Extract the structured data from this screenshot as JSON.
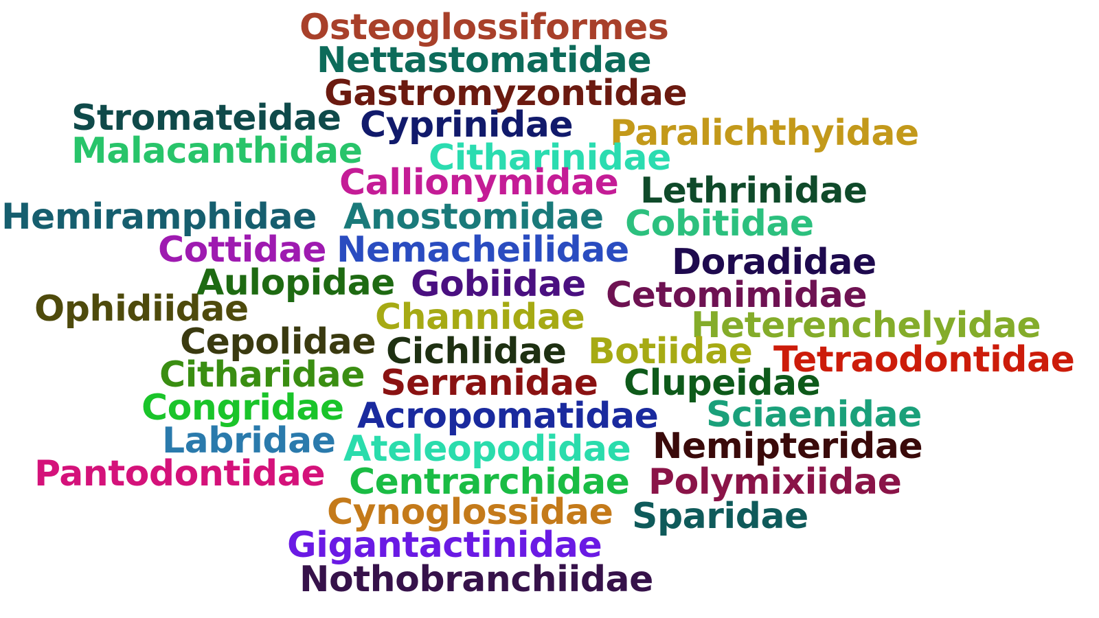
{
  "words": [
    {
      "text": "Osteoglossiformes",
      "color": "#a8402a"
    },
    {
      "text": "Nettastomatidae",
      "color": "#0d6b5a"
    },
    {
      "text": "Gastromyzontidae",
      "color": "#6b1a10"
    },
    {
      "text": "Stromateidae",
      "color": "#0f4a4a"
    },
    {
      "text": "Cyprinidae",
      "color": "#111a6b"
    },
    {
      "text": "Paralichthyidae",
      "color": "#c3991a"
    },
    {
      "text": "Malacanthidae",
      "color": "#28c46a"
    },
    {
      "text": "Citharinidae",
      "color": "#2bdcb0"
    },
    {
      "text": "Callionymidae",
      "color": "#c41c96"
    },
    {
      "text": "Lethrinidae",
      "color": "#0f4a2a"
    },
    {
      "text": "Hemiramphidae",
      "color": "#165e6e"
    },
    {
      "text": "Anostomidae",
      "color": "#1a7a7a"
    },
    {
      "text": "Cobitidae",
      "color": "#2cc07e"
    },
    {
      "text": "Cottidae",
      "color": "#9e1ab0"
    },
    {
      "text": "Nemacheilidae",
      "color": "#2a4cc0"
    },
    {
      "text": "Doradidae",
      "color": "#1e0a4e"
    },
    {
      "text": "Aulopidae",
      "color": "#1e6a12"
    },
    {
      "text": "Gobiidae",
      "color": "#4a1080"
    },
    {
      "text": "Cetomimidae",
      "color": "#6e1252"
    },
    {
      "text": "Ophidiidae",
      "color": "#4e4a0c"
    },
    {
      "text": "Channidae",
      "color": "#a6aa14"
    },
    {
      "text": "Heterenchelyidae",
      "color": "#84ac2a"
    },
    {
      "text": "Cepolidae",
      "color": "#3a3a10"
    },
    {
      "text": "Cichlidae",
      "color": "#1e3012"
    },
    {
      "text": "Botiidae",
      "color": "#a6aa14"
    },
    {
      "text": "Tetraodontidae",
      "color": "#cc1c0a"
    },
    {
      "text": "Citharidae",
      "color": "#3a8e12"
    },
    {
      "text": "Serranidae",
      "color": "#8a1212"
    },
    {
      "text": "Clupeidae",
      "color": "#0e5a1a"
    },
    {
      "text": "Congridae",
      "color": "#1ac42a"
    },
    {
      "text": "Acropomatidae",
      "color": "#1a2a9e"
    },
    {
      "text": "Sciaenidae",
      "color": "#1aa07a"
    },
    {
      "text": "Labridae",
      "color": "#2a7aac"
    },
    {
      "text": "Ateleopodidae",
      "color": "#2adcac"
    },
    {
      "text": "Nemipteridae",
      "color": "#3a0a0a"
    },
    {
      "text": "Pantodontidae",
      "color": "#d4127a"
    },
    {
      "text": "Centrarchidae",
      "color": "#1abc44"
    },
    {
      "text": "Polymixiidae",
      "color": "#8a1448"
    },
    {
      "text": "Cynoglossidae",
      "color": "#c47a1a"
    },
    {
      "text": "Sparidae",
      "color": "#0f5a5a"
    },
    {
      "text": "Gigantactinidae",
      "color": "#6a1ae4"
    },
    {
      "text": "Nothobranchiidae",
      "color": "#36124a"
    }
  ]
}
